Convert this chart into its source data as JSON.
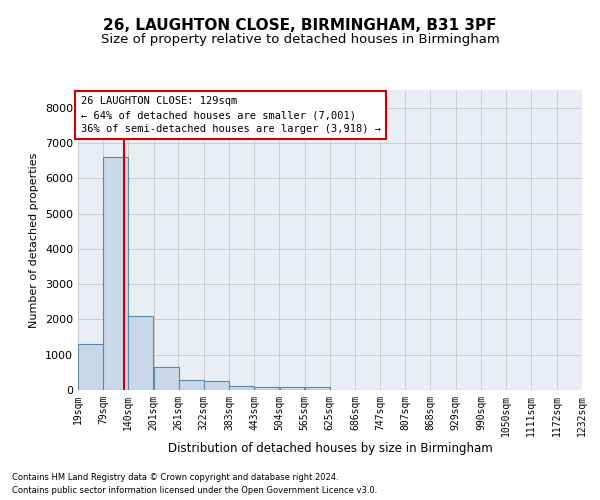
{
  "title1": "26, LAUGHTON CLOSE, BIRMINGHAM, B31 3PF",
  "title2": "Size of property relative to detached houses in Birmingham",
  "xlabel": "Distribution of detached houses by size in Birmingham",
  "ylabel": "Number of detached properties",
  "footer1": "Contains HM Land Registry data © Crown copyright and database right 2024.",
  "footer2": "Contains public sector information licensed under the Open Government Licence v3.0.",
  "annotation_line1": "26 LAUGHTON CLOSE: 129sqm",
  "annotation_line2": "← 64% of detached houses are smaller (7,001)",
  "annotation_line3": "36% of semi-detached houses are larger (3,918) →",
  "bar_left_edges": [
    19,
    79,
    140,
    201,
    261,
    322,
    383,
    443,
    504,
    565,
    625,
    686,
    747,
    807,
    868,
    929,
    990,
    1050,
    1111,
    1172
  ],
  "bar_heights": [
    1300,
    6600,
    2100,
    650,
    280,
    260,
    120,
    80,
    80,
    80,
    0,
    0,
    0,
    0,
    0,
    0,
    0,
    0,
    0,
    0
  ],
  "bin_width": 61,
  "tick_labels": [
    "19sqm",
    "79sqm",
    "140sqm",
    "201sqm",
    "261sqm",
    "322sqm",
    "383sqm",
    "443sqm",
    "504sqm",
    "565sqm",
    "625sqm",
    "686sqm",
    "747sqm",
    "807sqm",
    "868sqm",
    "929sqm",
    "990sqm",
    "1050sqm",
    "1111sqm",
    "1172sqm",
    "1232sqm"
  ],
  "bar_color": "#c8d8e8",
  "bar_edge_color": "#5a8aaa",
  "vline_color": "#cc0000",
  "vline_x": 129,
  "ylim": [
    0,
    8500
  ],
  "yticks": [
    0,
    1000,
    2000,
    3000,
    4000,
    5000,
    6000,
    7000,
    8000
  ],
  "grid_color": "#cccccc",
  "bg_color": "#e8eef4",
  "annotation_box_color": "#cc0000",
  "title1_fontsize": 11,
  "title2_fontsize": 9.5,
  "axis_label_fontsize": 8,
  "tick_fontsize": 7,
  "annotation_fontsize": 7.5,
  "footer_fontsize": 6
}
